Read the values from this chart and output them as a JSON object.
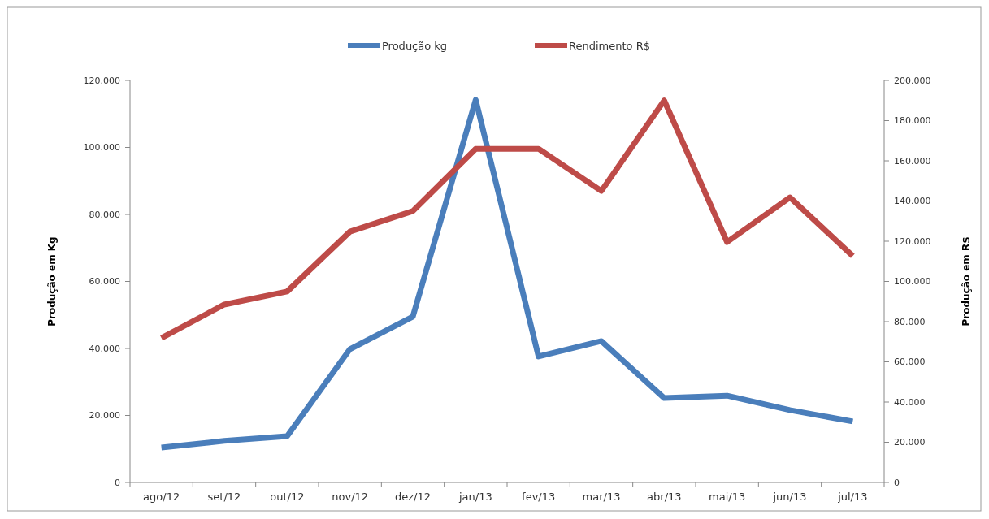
{
  "chart_data": {
    "type": "line",
    "ylabel": "Produção em Kg",
    "y2label": "Produção em R$",
    "categories": [
      "ago/12",
      "set/12",
      "out/12",
      "nov/12",
      "dez/12",
      "jan/13",
      "fev/13",
      "mar/13",
      "abr/13",
      "mai/13",
      "jun/13",
      "jul/13"
    ],
    "series": [
      {
        "name": "Produção kg",
        "color": "#4a7ebb",
        "values": [
          10400,
          12400,
          13800,
          39800,
          49500,
          114200,
          37600,
          42200,
          25200,
          25900,
          21600,
          18200
        ]
      },
      {
        "name": "Rendimento R$",
        "color": "#be4b48",
        "axis": "y2",
        "values": [
          71900,
          88500,
          95000,
          124800,
          135000,
          166000,
          166000,
          145000,
          190000,
          119600,
          141800,
          112700
        ]
      }
    ],
    "ylim": [
      0,
      120000
    ],
    "yticks": [
      0,
      {
        "value": 20000,
        "label": "20.000"
      },
      {
        "value": 40000,
        "label": "40.000"
      },
      {
        "value": 60000,
        "label": "60.000"
      },
      {
        "value": 80000,
        "label": "80.000"
      },
      {
        "value": 100000,
        "label": "100.000"
      },
      {
        "value": 120000,
        "label": "120.000"
      }
    ],
    "y2lim": [
      0,
      200000
    ],
    "y2ticks": [
      0,
      {
        "value": 20000,
        "label": "20.000"
      },
      {
        "value": 40000,
        "label": "40.000"
      },
      {
        "value": 60000,
        "label": "60.000"
      },
      {
        "value": 80000,
        "label": "80.000"
      },
      {
        "value": 100000,
        "label": "100.000"
      },
      {
        "value": 120000,
        "label": "120.000"
      },
      {
        "value": 140000,
        "label": "140.000"
      },
      {
        "value": 160000,
        "label": "160.000"
      },
      {
        "value": 180000,
        "label": "180.000"
      },
      {
        "value": 200000,
        "label": "200.000"
      }
    ],
    "legend": "top",
    "grid": false,
    "marker": "none",
    "line_style": "solid"
  }
}
